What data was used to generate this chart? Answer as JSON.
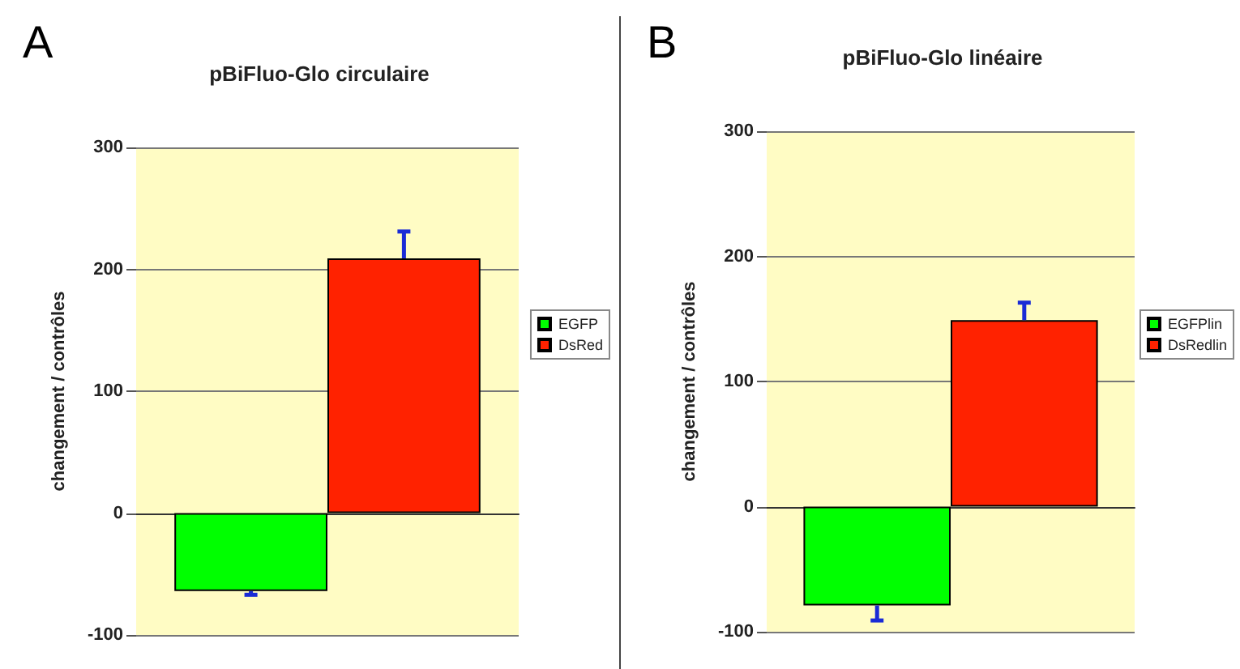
{
  "chart_data": [
    {
      "type": "bar",
      "title": "pBiFluo-Glo circulaire",
      "ylabel": "changement / contrôles",
      "annotations": [
        "A"
      ],
      "categories": [
        null
      ],
      "series": [
        {
          "name": "EGFP",
          "color": "#00ff00",
          "values": [
            -64
          ],
          "errors": [
            [
              -67,
              -64
            ]
          ]
        },
        {
          "name": "DsRed",
          "color": "#ff2200",
          "values": [
            209
          ],
          "errors": [
            [
              209,
              231
            ]
          ]
        }
      ],
      "ylim": [
        -100,
        300
      ],
      "yticks": [
        -100,
        0,
        100,
        200,
        300
      ],
      "grid": "y",
      "legend": "right"
    },
    {
      "type": "bar",
      "title": "pBiFluo-Glo linéaire",
      "ylabel": "changement / contrôles",
      "annotations": [
        "B"
      ],
      "categories": [
        null
      ],
      "series": [
        {
          "name": "EGFPlin",
          "color": "#00ff00",
          "values": [
            -79
          ],
          "errors": [
            [
              -91,
              -79
            ]
          ]
        },
        {
          "name": "DsRedlin",
          "color": "#ff2200",
          "values": [
            149
          ],
          "errors": [
            [
              149,
              163
            ]
          ]
        }
      ],
      "ylim": [
        -100,
        300
      ],
      "yticks": [
        -100,
        0,
        100,
        200,
        300
      ],
      "grid": "y",
      "legend": "right"
    }
  ]
}
